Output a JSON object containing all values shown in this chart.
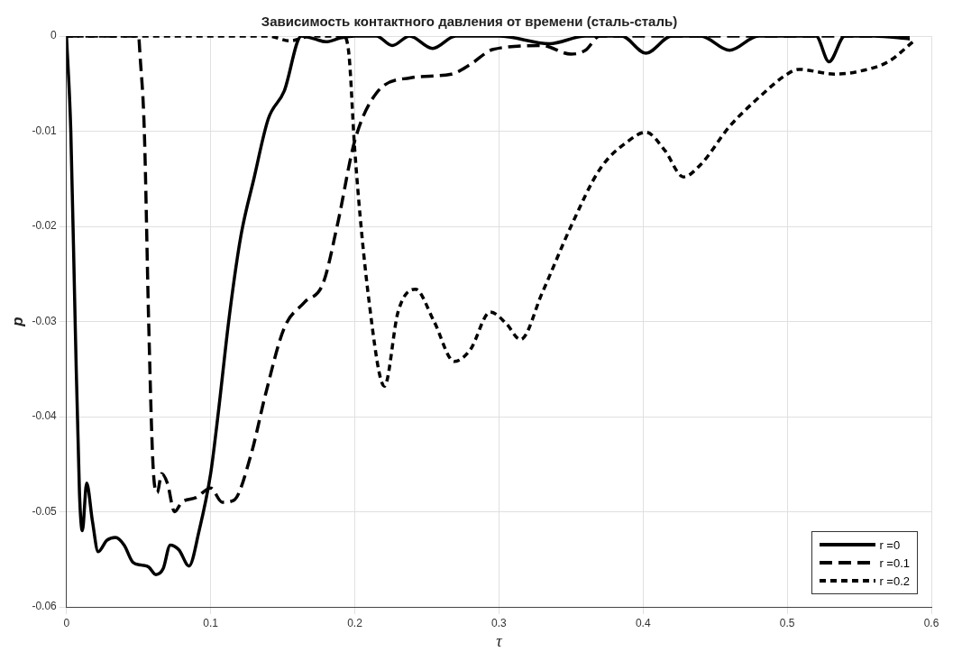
{
  "chart_data": {
    "type": "line",
    "title": "Зависимость контактного давления от времени (сталь-сталь)",
    "xlabel": "τ",
    "ylabel": "p",
    "xlim": [
      0,
      0.6
    ],
    "ylim": [
      -0.06,
      0
    ],
    "xticks": [
      0,
      0.1,
      0.2,
      0.3,
      0.4,
      0.5,
      0.6
    ],
    "yticks": [
      0,
      -0.01,
      -0.02,
      -0.03,
      -0.04,
      -0.05,
      -0.06
    ],
    "grid": true,
    "legend": "bottom right",
    "marker": "none",
    "series": [
      {
        "name": "r =0",
        "color": "#000000",
        "line_style": "solid",
        "x": [
          0,
          0.003,
          0.006,
          0.009,
          0.011,
          0.014,
          0.018,
          0.022,
          0.028,
          0.034,
          0.04,
          0.046,
          0.052,
          0.057,
          0.062,
          0.067,
          0.072,
          0.078,
          0.085,
          0.092,
          0.1,
          0.105,
          0.113,
          0.121,
          0.13,
          0.14,
          0.151,
          0.163,
          0.172,
          0.18,
          0.19,
          0.2,
          0.215,
          0.226,
          0.238,
          0.254,
          0.27,
          0.3,
          0.335,
          0.36,
          0.385,
          0.402,
          0.42,
          0.44,
          0.46,
          0.48,
          0.51,
          0.52,
          0.529,
          0.54,
          0.56,
          0.585
        ],
        "values": [
          0,
          -0.01,
          -0.03,
          -0.048,
          -0.052,
          -0.047,
          -0.051,
          -0.0542,
          -0.053,
          -0.0527,
          -0.0535,
          -0.0553,
          -0.0556,
          -0.0558,
          -0.0566,
          -0.056,
          -0.0535,
          -0.054,
          -0.0557,
          -0.052,
          -0.046,
          -0.04,
          -0.0294,
          -0.021,
          -0.015,
          -0.0087,
          -0.0058,
          0,
          -0.0003,
          -0.0006,
          -0.0002,
          0,
          0,
          -0.001,
          0,
          -0.0013,
          0,
          0,
          -0.0008,
          0,
          0,
          -0.0018,
          0,
          0,
          -0.0015,
          0,
          0,
          0,
          -0.0027,
          0,
          0,
          -0.0003
        ]
      },
      {
        "name": "r =0.1",
        "color": "#000000",
        "line_style": "dashed",
        "x": [
          0,
          0.05,
          0.051,
          0.054,
          0.057,
          0.06,
          0.063,
          0.066,
          0.07,
          0.075,
          0.08,
          0.09,
          0.1,
          0.108,
          0.116,
          0.128,
          0.138,
          0.151,
          0.165,
          0.178,
          0.188,
          0.2,
          0.215,
          0.238,
          0.267,
          0.28,
          0.296,
          0.33,
          0.35,
          0.36,
          0.37,
          0.4,
          0.45,
          0.5,
          0.585
        ],
        "values": [
          0,
          0,
          -0.002,
          -0.01,
          -0.03,
          -0.045,
          -0.048,
          -0.046,
          -0.047,
          -0.05,
          -0.049,
          -0.0485,
          -0.0475,
          -0.049,
          -0.0488,
          -0.044,
          -0.0377,
          -0.0307,
          -0.028,
          -0.026,
          -0.0198,
          -0.011,
          -0.006,
          -0.0044,
          -0.004,
          -0.003,
          -0.0014,
          -0.001,
          -0.0019,
          -0.0015,
          0,
          0,
          0,
          0,
          0
        ]
      },
      {
        "name": "r =0.2",
        "color": "#000000",
        "line_style": "dotted",
        "x": [
          0,
          0.14,
          0.155,
          0.17,
          0.192,
          0.196,
          0.2,
          0.21,
          0.2206,
          0.23,
          0.242,
          0.255,
          0.269,
          0.28,
          0.294,
          0.305,
          0.315,
          0.33,
          0.35,
          0.37,
          0.39,
          0.402,
          0.415,
          0.428,
          0.44,
          0.46,
          0.48,
          0.5,
          0.508,
          0.533,
          0.55,
          0.57,
          0.588
        ],
        "values": [
          0,
          0,
          -0.0005,
          0,
          0,
          -0.002,
          -0.012,
          -0.028,
          -0.0368,
          -0.029,
          -0.0266,
          -0.03,
          -0.0342,
          -0.033,
          -0.029,
          -0.0302,
          -0.0319,
          -0.027,
          -0.02,
          -0.014,
          -0.011,
          -0.0101,
          -0.012,
          -0.0148,
          -0.0135,
          -0.0095,
          -0.0065,
          -0.004,
          -0.0035,
          -0.004,
          -0.0037,
          -0.0027,
          -0.0005
        ]
      }
    ]
  }
}
